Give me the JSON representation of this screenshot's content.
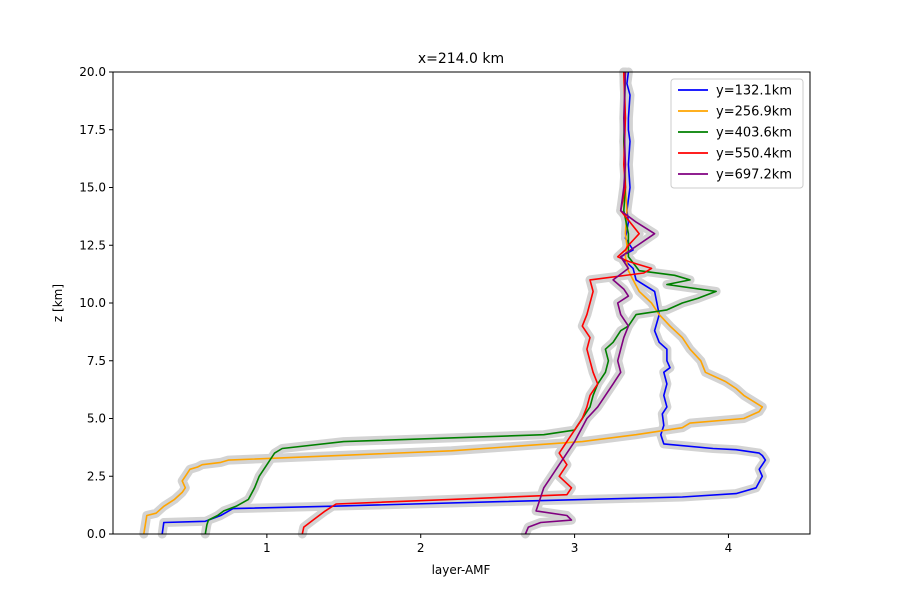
{
  "chart_data": {
    "type": "line",
    "title": "x=214.0 km",
    "xlabel": "layer-AMF",
    "ylabel": "z [km]",
    "xlim": [
      0,
      4.53
    ],
    "ylim": [
      0,
      20
    ],
    "x_ticks": [
      {
        "value": 1,
        "label": "1"
      },
      {
        "value": 2,
        "label": "2"
      },
      {
        "value": 3,
        "label": "3"
      },
      {
        "value": 4,
        "label": "4"
      }
    ],
    "y_ticks": [
      {
        "value": 0,
        "label": "0.0"
      },
      {
        "value": 2.5,
        "label": "2.5"
      },
      {
        "value": 5,
        "label": "5.0"
      },
      {
        "value": 7.5,
        "label": "7.5"
      },
      {
        "value": 10,
        "label": "10.0"
      },
      {
        "value": 12.5,
        "label": "12.5"
      },
      {
        "value": 15,
        "label": "15.0"
      },
      {
        "value": 17.5,
        "label": "17.5"
      },
      {
        "value": 20,
        "label": "20.0"
      }
    ],
    "grid": false,
    "legend_position": "top-right",
    "uncertainty_band_color": "#d3d3d3",
    "series": [
      {
        "name": "y=132.1km",
        "color": "#0000ff",
        "x": [
          0.32,
          0.33,
          0.6,
          0.7,
          0.78,
          1.4,
          2.5,
          3.7,
          4.05,
          4.18,
          4.22,
          4.2,
          4.24,
          4.22,
          4.2,
          4.05,
          3.9,
          3.58,
          3.56,
          3.58,
          3.57,
          3.6,
          3.58,
          3.6,
          3.58,
          3.62,
          3.6,
          3.6,
          3.55,
          3.52,
          3.55,
          3.52,
          3.4,
          3.38,
          3.3,
          3.38,
          3.33,
          3.35,
          3.34,
          3.36,
          3.35,
          3.36,
          3.35,
          3.35,
          3.36,
          3.34,
          3.35
        ],
        "y": [
          0.0,
          0.5,
          0.55,
          0.8,
          1.1,
          1.2,
          1.4,
          1.6,
          1.75,
          2.0,
          2.5,
          2.8,
          3.2,
          3.4,
          3.5,
          3.65,
          3.7,
          3.9,
          4.3,
          4.7,
          5.2,
          5.5,
          6.0,
          6.5,
          7.0,
          7.2,
          7.5,
          8.0,
          8.3,
          8.8,
          9.5,
          10.5,
          11.0,
          11.5,
          12.0,
          12.3,
          12.8,
          13.5,
          14.0,
          15.0,
          16.0,
          17.0,
          17.5,
          18.0,
          19.0,
          19.5,
          20.0
        ]
      },
      {
        "name": "y=256.9km",
        "color": "#ffa500",
        "x": [
          0.2,
          0.22,
          0.28,
          0.33,
          0.4,
          0.45,
          0.47,
          0.45,
          0.48,
          0.5,
          0.55,
          0.58,
          0.7,
          0.75,
          2.2,
          3.05,
          3.4,
          3.7,
          3.75,
          4.1,
          4.2,
          4.22,
          4.1,
          4.05,
          3.98,
          3.85,
          3.82,
          3.75,
          3.7,
          3.62,
          3.55,
          3.5,
          3.42,
          3.38,
          3.35,
          3.33,
          3.34,
          3.33,
          3.34,
          3.33,
          3.33,
          3.32,
          3.33,
          3.32
        ],
        "y": [
          0.0,
          0.8,
          0.9,
          1.2,
          1.5,
          1.8,
          2.0,
          2.3,
          2.6,
          2.8,
          2.9,
          3.0,
          3.1,
          3.2,
          3.6,
          4.0,
          4.3,
          4.6,
          4.8,
          5.0,
          5.3,
          5.5,
          6.0,
          6.3,
          6.6,
          7.0,
          7.5,
          8.0,
          8.5,
          9.0,
          9.5,
          10.0,
          10.5,
          11.0,
          11.4,
          12.0,
          12.5,
          13.0,
          14.0,
          15.0,
          16.0,
          17.0,
          18.0,
          20.0
        ]
      },
      {
        "name": "y=403.6km",
        "color": "#008000",
        "x": [
          0.6,
          0.61,
          0.62,
          0.68,
          0.72,
          0.8,
          0.88,
          0.92,
          0.95,
          1.0,
          1.05,
          1.1,
          1.5,
          2.8,
          3.0,
          3.05,
          3.1,
          3.12,
          3.15,
          3.2,
          3.22,
          3.2,
          3.25,
          3.3,
          3.35,
          3.4,
          3.6,
          3.7,
          3.8,
          3.92,
          3.6,
          3.75,
          3.65,
          3.42,
          3.35,
          3.35,
          3.32,
          3.33,
          3.32,
          3.33
        ],
        "y": [
          0.0,
          0.4,
          0.6,
          0.8,
          1.0,
          1.2,
          1.5,
          2.0,
          2.5,
          3.0,
          3.5,
          3.7,
          4.0,
          4.3,
          4.5,
          5.0,
          5.5,
          6.0,
          6.5,
          7.0,
          7.5,
          8.0,
          8.3,
          8.8,
          9.0,
          9.5,
          9.7,
          10.0,
          10.2,
          10.5,
          10.8,
          11.0,
          11.2,
          11.4,
          12.0,
          13.0,
          14.0,
          15.0,
          17.0,
          20.0
        ]
      },
      {
        "name": "y=550.4km",
        "color": "#ff0000",
        "x": [
          1.23,
          1.24,
          1.3,
          1.38,
          1.45,
          2.2,
          2.95,
          2.98,
          2.9,
          2.95,
          2.92,
          2.9,
          2.95,
          3.0,
          3.05,
          3.08,
          3.1,
          3.15,
          3.12,
          3.1,
          3.08,
          3.1,
          3.05,
          3.08,
          3.1,
          3.12,
          3.1,
          3.45,
          3.5,
          3.35,
          3.28,
          3.33,
          3.35,
          3.42,
          3.3,
          3.33,
          3.32,
          3.33,
          3.32
        ],
        "y": [
          0.0,
          0.3,
          0.6,
          1.0,
          1.3,
          1.5,
          1.7,
          2.0,
          2.5,
          3.0,
          3.3,
          3.5,
          4.0,
          4.5,
          5.0,
          5.5,
          6.0,
          6.5,
          7.0,
          7.5,
          8.0,
          8.5,
          9.0,
          9.5,
          10.0,
          10.5,
          11.0,
          11.3,
          11.5,
          11.8,
          12.0,
          12.3,
          12.5,
          13.0,
          14.0,
          15.0,
          16.0,
          18.0,
          20.0
        ]
      },
      {
        "name": "y=697.2km",
        "color": "#800080",
        "x": [
          2.68,
          2.7,
          2.78,
          2.98,
          2.95,
          2.75,
          2.8,
          2.85,
          2.9,
          2.95,
          3.0,
          3.08,
          3.15,
          3.2,
          3.25,
          3.3,
          3.28,
          3.3,
          3.32,
          3.35,
          3.3,
          3.28,
          3.35,
          3.32,
          3.25,
          3.35,
          3.3,
          3.52,
          3.4,
          3.3,
          3.32,
          3.33,
          3.32,
          3.33
        ],
        "y": [
          0.0,
          0.3,
          0.5,
          0.6,
          0.8,
          1.0,
          2.0,
          2.5,
          3.0,
          3.5,
          4.0,
          5.0,
          5.5,
          6.0,
          6.5,
          7.0,
          7.5,
          8.0,
          8.5,
          9.0,
          9.5,
          10.0,
          10.3,
          10.6,
          11.0,
          11.5,
          12.0,
          13.0,
          13.5,
          14.0,
          15.0,
          16.0,
          18.0,
          20.0
        ]
      }
    ]
  }
}
